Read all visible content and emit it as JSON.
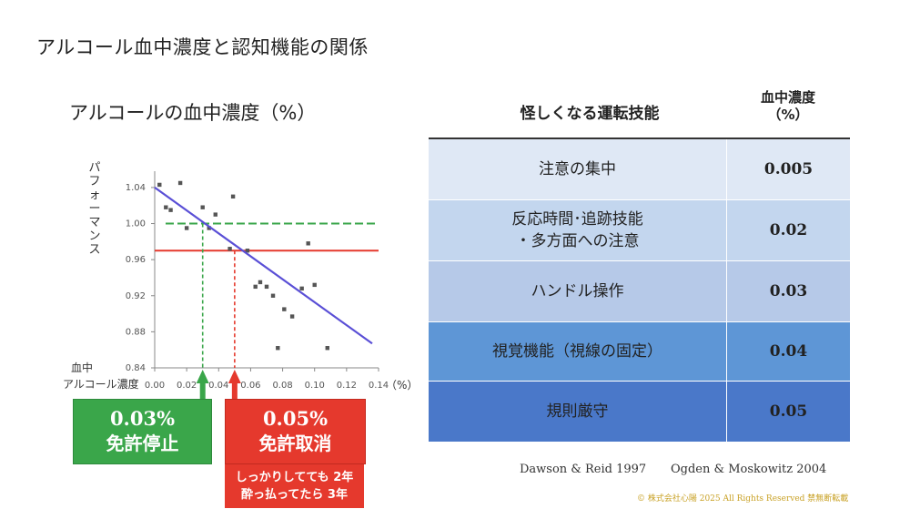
{
  "page_title": "アルコール血中濃度と認知機能の関係",
  "chart_data": {
    "type": "scatter",
    "title": "アルコールの血中濃度（%）",
    "ylabel": "パフォーマンス",
    "xlabel": "血中アルコール濃度",
    "x_unit": "（%）",
    "xlim": [
      0,
      0.14
    ],
    "ylim": [
      0.84,
      1.05
    ],
    "x_ticks": [
      "0.00",
      "0.02",
      "0.04",
      "0.06",
      "0.08",
      "0.10",
      "0.12",
      "0.14"
    ],
    "y_ticks": [
      "0.84",
      "0.88",
      "0.92",
      "0.96",
      "1.00",
      "1.04"
    ],
    "points": [
      {
        "x": 0.003,
        "y": 1.043
      },
      {
        "x": 0.007,
        "y": 1.018
      },
      {
        "x": 0.01,
        "y": 1.015
      },
      {
        "x": 0.016,
        "y": 1.045
      },
      {
        "x": 0.02,
        "y": 0.995
      },
      {
        "x": 0.03,
        "y": 1.018
      },
      {
        "x": 0.034,
        "y": 0.995
      },
      {
        "x": 0.038,
        "y": 1.01
      },
      {
        "x": 0.047,
        "y": 0.972
      },
      {
        "x": 0.049,
        "y": 1.03
      },
      {
        "x": 0.058,
        "y": 0.97
      },
      {
        "x": 0.063,
        "y": 0.93
      },
      {
        "x": 0.066,
        "y": 0.935
      },
      {
        "x": 0.07,
        "y": 0.93
      },
      {
        "x": 0.074,
        "y": 0.92
      },
      {
        "x": 0.077,
        "y": 0.862
      },
      {
        "x": 0.081,
        "y": 0.905
      },
      {
        "x": 0.086,
        "y": 0.897
      },
      {
        "x": 0.092,
        "y": 0.928
      },
      {
        "x": 0.096,
        "y": 0.978
      },
      {
        "x": 0.1,
        "y": 0.932
      },
      {
        "x": 0.108,
        "y": 0.862
      }
    ],
    "trend_line": {
      "x": [
        0.0,
        0.136
      ],
      "y": [
        1.04,
        0.867
      ],
      "color": "#5a4fd6"
    },
    "reference_lines": [
      {
        "y": 1.0,
        "color": "#3aa64a",
        "style": "dashed"
      },
      {
        "y": 0.97,
        "color": "#e5392d",
        "style": "solid"
      }
    ],
    "markers": [
      {
        "x": 0.03,
        "color": "#3aa64a"
      },
      {
        "x": 0.05,
        "color": "#e5392d"
      }
    ]
  },
  "callouts": {
    "green": {
      "value": "0.03%",
      "label": "免許停止",
      "color": "#3aa64a"
    },
    "red": {
      "value": "0.05%",
      "label": "免許取消",
      "color": "#e5392d"
    },
    "red_note_line1": "しっかりしてても 2年",
    "red_note_line2": "酔っ払ってたら 3年"
  },
  "table": {
    "header_skill": "怪しくなる運転技能",
    "header_conc_line1": "血中濃度",
    "header_conc_line2": "（%）",
    "rows": [
      {
        "skill_line1": "注意の集中",
        "skill_line2": "",
        "value": "0.005",
        "bg": "#dfe8f5"
      },
      {
        "skill_line1": "反応時間･追跡技能",
        "skill_line2": "・多方面への注意",
        "value": "0.02",
        "bg": "#c3d6ee"
      },
      {
        "skill_line1": "ハンドル操作",
        "skill_line2": "",
        "value": "0.03",
        "bg": "#b6c9e8"
      },
      {
        "skill_line1": "視覚機能（視線の固定）",
        "skill_line2": "",
        "value": "0.04",
        "bg": "#5e96d6"
      },
      {
        "skill_line1": "規則厳守",
        "skill_line2": "",
        "value": "0.05",
        "bg": "#4a78c9"
      }
    ]
  },
  "sources": [
    "Dawson & Reid 1997",
    "Ogden & Moskowitz 2004"
  ],
  "copyright": "© 株式会社心陽 2025 All Rights Reserved 禁無断転載"
}
